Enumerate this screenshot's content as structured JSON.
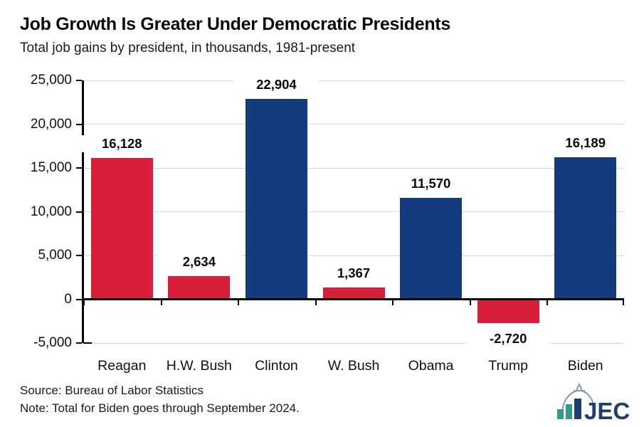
{
  "title": "Job Growth Is Greater Under Democratic Presidents",
  "subtitle": "Total job gains by president, in thousands, 1981-present",
  "footer": {
    "source": "Source: Bureau of Labor Statistics",
    "note": "Note: Total for Biden goes through September 2024."
  },
  "logo": {
    "text": "JEC"
  },
  "colors": {
    "republican_red": "#D81E38",
    "democrat_navy": "#133B7E",
    "gridline_gray": "#D7D7D7",
    "axis_black": "#000000",
    "logo_navy": "#1C3F6E",
    "logo_teal": "#2F9B8C",
    "logo_dome_blue": "#7E9CB8"
  },
  "chart_data": {
    "type": "bar",
    "title": "Job Growth Is Greater Under Democratic Presidents",
    "subtitle": "Total job gains by president, in thousands, 1981-present",
    "categories": [
      "Reagan",
      "H.W. Bush",
      "Clinton",
      "W. Bush",
      "Obama",
      "Trump",
      "Biden"
    ],
    "values": [
      16128,
      2634,
      22904,
      1367,
      11570,
      -2720,
      16189
    ],
    "value_labels": [
      "16,128",
      "2,634",
      "22,904",
      "1,367",
      "11,570",
      "-2,720",
      "16,189"
    ],
    "parties": [
      "R",
      "R",
      "D",
      "R",
      "D",
      "R",
      "D"
    ],
    "xlabel": "",
    "ylabel": "",
    "ylim": [
      -5000,
      25000
    ],
    "ytick_step": 5000,
    "ytick_labels": [
      "25,000",
      "20,000",
      "15,000",
      "10,000",
      "5,000",
      "0",
      "-5,000"
    ],
    "grid": true,
    "legend": false
  }
}
